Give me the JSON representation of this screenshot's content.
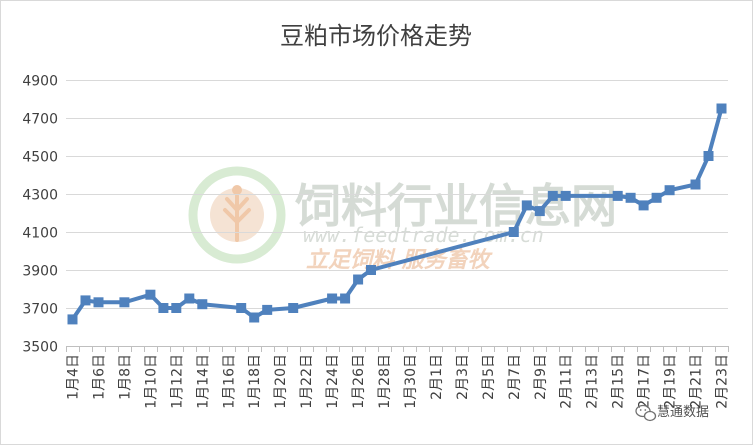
{
  "chart_data": {
    "type": "line",
    "title": "豆粕市场价格走势",
    "xlabel": "",
    "ylabel": "",
    "ylim": [
      3500,
      4900
    ],
    "yticks": [
      3500,
      3700,
      3900,
      4100,
      4300,
      4500,
      4700,
      4900
    ],
    "grid": "horizontal",
    "legend": "none",
    "color": "#4f81bd",
    "x_tick_labels": [
      "1月4日",
      "1月6日",
      "1月8日",
      "1月10日",
      "1月12日",
      "1月14日",
      "1月16日",
      "1月18日",
      "1月20日",
      "1月22日",
      "1月24日",
      "1月26日",
      "1月28日",
      "1月30日",
      "2月1日",
      "2月3日",
      "2月5日",
      "2月7日",
      "2月9日",
      "2月11日",
      "2月13日",
      "2月15日",
      "2月17日",
      "2月19日",
      "2月21日",
      "2月23日"
    ],
    "categories": [
      "1月4日",
      "1月5日",
      "1月6日",
      "1月7日",
      "1月8日",
      "1月9日",
      "1月10日",
      "1月11日",
      "1月12日",
      "1月13日",
      "1月14日",
      "1月15日",
      "1月16日",
      "1月17日",
      "1月18日",
      "1月19日",
      "1月20日",
      "1月21日",
      "1月22日",
      "1月23日",
      "1月24日",
      "1月25日",
      "1月26日",
      "1月27日",
      "1月28日",
      "1月29日",
      "1月30日",
      "1月31日",
      "2月1日",
      "2月2日",
      "2月3日",
      "2月4日",
      "2月5日",
      "2月6日",
      "2月7日",
      "2月8日",
      "2月9日",
      "2月10日",
      "2月11日",
      "2月12日",
      "2月13日",
      "2月14日",
      "2月15日",
      "2月16日",
      "2月17日",
      "2月18日",
      "2月19日",
      "2月20日",
      "2月21日",
      "2月22日",
      "2月23日"
    ],
    "series": [
      {
        "values": [
          3640,
          3740,
          3730,
          null,
          3730,
          null,
          3770,
          3700,
          3700,
          3750,
          3720,
          null,
          null,
          3700,
          3650,
          3690,
          null,
          3700,
          null,
          null,
          3750,
          3750,
          3850,
          3900,
          null,
          null,
          null,
          null,
          null,
          null,
          null,
          null,
          null,
          null,
          4100,
          4240,
          4210,
          4290,
          4290,
          null,
          null,
          null,
          4290,
          4280,
          4240,
          4280,
          4320,
          null,
          4350,
          4500,
          4750
        ]
      }
    ]
  },
  "watermark": {
    "name": "饲料行业信息网",
    "url": "www.feedtrade.com.cn",
    "slogan": "立足饲料 服务畜牧"
  },
  "footer": {
    "label": "慧通数据"
  }
}
